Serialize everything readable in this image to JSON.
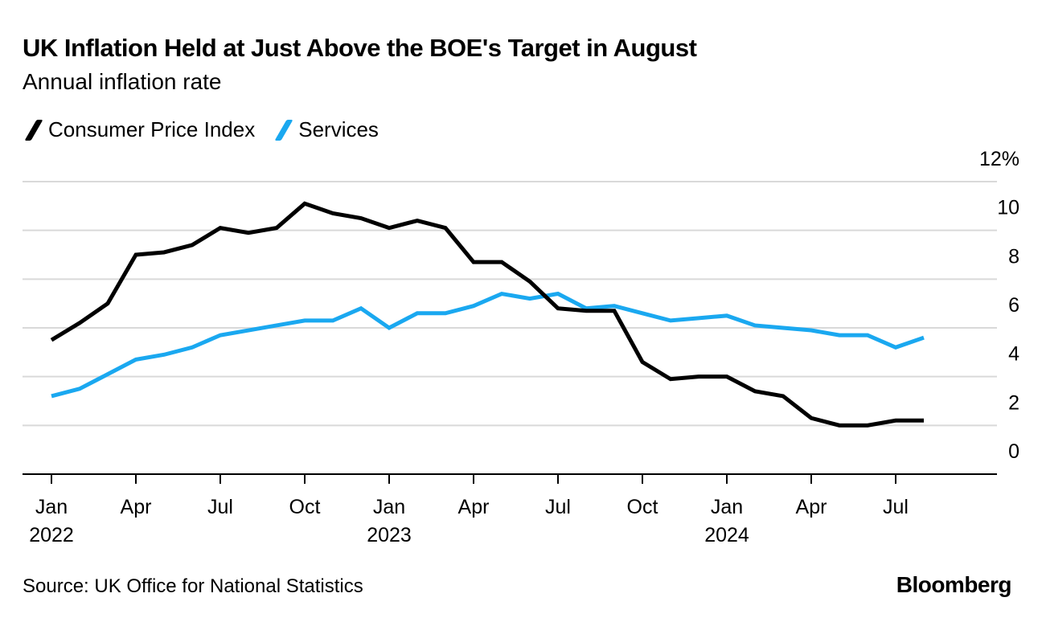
{
  "chart_data": {
    "type": "line",
    "title": "UK Inflation Held at Just Above the BOE's Target in August",
    "subtitle": "Annual inflation rate",
    "x": [
      "2022-01",
      "2022-02",
      "2022-03",
      "2022-04",
      "2022-05",
      "2022-06",
      "2022-07",
      "2022-08",
      "2022-09",
      "2022-10",
      "2022-11",
      "2022-12",
      "2023-01",
      "2023-02",
      "2023-03",
      "2023-04",
      "2023-05",
      "2023-06",
      "2023-07",
      "2023-08",
      "2023-09",
      "2023-10",
      "2023-11",
      "2023-12",
      "2024-01",
      "2024-02",
      "2024-03",
      "2024-04",
      "2024-05",
      "2024-06",
      "2024-07",
      "2024-08"
    ],
    "series": [
      {
        "name": "Consumer Price Index",
        "color": "#000000",
        "values": [
          5.5,
          6.2,
          7.0,
          9.0,
          9.1,
          9.4,
          10.1,
          9.9,
          10.1,
          11.1,
          10.7,
          10.5,
          10.1,
          10.4,
          10.1,
          8.7,
          8.7,
          7.9,
          6.8,
          6.7,
          6.7,
          4.6,
          3.9,
          4.0,
          4.0,
          3.4,
          3.2,
          2.3,
          2.0,
          2.0,
          2.2,
          2.2
        ]
      },
      {
        "name": "Services",
        "color": "#1aa8f0",
        "values": [
          3.2,
          3.5,
          4.1,
          4.7,
          4.9,
          5.2,
          5.7,
          5.9,
          6.1,
          6.3,
          6.3,
          6.8,
          6.0,
          6.6,
          6.6,
          6.9,
          7.4,
          7.2,
          7.4,
          6.8,
          6.9,
          6.6,
          6.3,
          6.4,
          6.5,
          6.1,
          6.0,
          5.9,
          5.7,
          5.7,
          5.2,
          5.6
        ]
      }
    ],
    "ylim": [
      0,
      12
    ],
    "y_ticks": [
      "0",
      "2",
      "4",
      "6",
      "8",
      "10",
      "12%"
    ],
    "y_axis_position": "right",
    "grid": true,
    "legend_position": "top-left",
    "x_ticks": [
      {
        "month": "Jan",
        "year": "2022"
      },
      {
        "month": "Apr",
        "year": ""
      },
      {
        "month": "Jul",
        "year": ""
      },
      {
        "month": "Oct",
        "year": ""
      },
      {
        "month": "Jan",
        "year": "2023"
      },
      {
        "month": "Apr",
        "year": ""
      },
      {
        "month": "Jul",
        "year": ""
      },
      {
        "month": "Oct",
        "year": ""
      },
      {
        "month": "Jan",
        "year": "2024"
      },
      {
        "month": "Apr",
        "year": ""
      },
      {
        "month": "Jul",
        "year": ""
      }
    ]
  },
  "source": "Source: UK Office for National Statistics",
  "brand": "Bloomberg"
}
